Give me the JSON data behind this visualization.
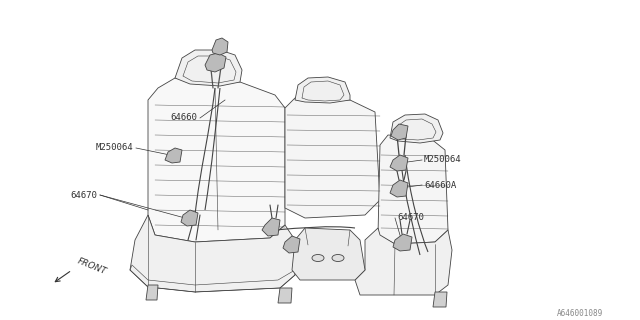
{
  "bg_color": "#ffffff",
  "line_color": "#444444",
  "thin_lw": 0.6,
  "med_lw": 0.8,
  "font_size": 6.5,
  "part_num_font_size": 5.5,
  "label_texts": {
    "64660": "64660",
    "M250064_left": "M250064",
    "M250064_right": "M250064",
    "64660A": "64660A",
    "64670_left": "64670",
    "64670_right": "64670",
    "FRONT": "FRONT",
    "part_num": "A646001089"
  }
}
